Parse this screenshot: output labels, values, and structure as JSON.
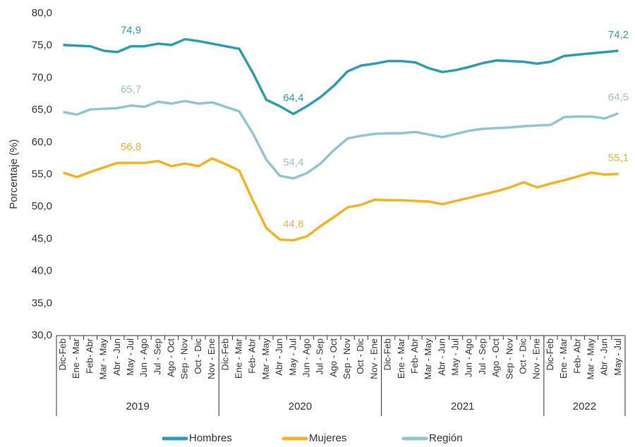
{
  "chart_data": {
    "type": "line",
    "y_label": "Porcentaje (%)",
    "category_groups": [
      {
        "label": "2019",
        "categories": [
          "Dic-Feb",
          "Ene - Mar",
          "Feb- Abr",
          "Mar - May",
          "Abr - Jun",
          "May - Jul",
          "Jun - Ago",
          "Jul - Sep",
          "Ago - Oct",
          "Sep - Nov",
          "Oct - Dic",
          "Nov - Ene"
        ]
      },
      {
        "label": "2020",
        "categories": [
          "Dic-Feb",
          "Ene - Mar",
          "Feb- Abr",
          "Mar - May",
          "Abr - Jun",
          "May - Jul",
          "Jun - Ago",
          "Jul - Sep",
          "Ago - Oct",
          "Sep - Nov",
          "Oct - Dic",
          "Nov - Ene"
        ]
      },
      {
        "label": "2021",
        "categories": [
          "Dic-Feb",
          "Ene - Mar",
          "Feb- Abr",
          "Mar - May",
          "Abr - Jun",
          "May - Jul",
          "Jun - Ago",
          "Jul - Sep",
          "Ago - Oct",
          "Sep - Nov",
          "Oct - Dic",
          "Nov - Ene"
        ]
      },
      {
        "label": "2022",
        "categories": [
          "Dic-Feb",
          "Ene - Mar",
          "Feb- Abr",
          "Mar - May",
          "Abr - Jun",
          "May - Jul"
        ]
      }
    ],
    "series": [
      {
        "name": "Hombres",
        "color": "#2e9cb4",
        "values": [
          75.1,
          75.0,
          74.9,
          74.2,
          74.0,
          74.9,
          74.9,
          75.3,
          75.1,
          76.0,
          75.7,
          75.3,
          74.9,
          74.5,
          70.8,
          66.6,
          65.6,
          64.4,
          65.6,
          67.0,
          68.8,
          71.0,
          71.9,
          72.2,
          72.6,
          72.6,
          72.4,
          71.5,
          70.9,
          71.2,
          71.7,
          72.3,
          72.7,
          72.6,
          72.5,
          72.2,
          72.5,
          73.4,
          73.6,
          73.8,
          74.0,
          74.2
        ],
        "value_labels": [
          null,
          null,
          null,
          null,
          null,
          "74,9",
          null,
          null,
          null,
          null,
          null,
          null,
          null,
          null,
          null,
          null,
          null,
          "64,4",
          null,
          null,
          null,
          null,
          null,
          null,
          null,
          null,
          null,
          null,
          null,
          null,
          null,
          null,
          null,
          null,
          null,
          null,
          null,
          null,
          null,
          null,
          null,
          "74,2"
        ]
      },
      {
        "name": "Mujeres",
        "color": "#f5b324",
        "values": [
          55.3,
          54.6,
          55.4,
          56.1,
          56.8,
          56.8,
          56.8,
          57.1,
          56.3,
          56.7,
          56.3,
          57.5,
          56.6,
          55.6,
          51.0,
          46.7,
          44.9,
          44.8,
          45.4,
          47.0,
          48.4,
          49.9,
          50.3,
          51.1,
          51.0,
          51.0,
          50.9,
          50.8,
          50.4,
          50.9,
          51.4,
          51.9,
          52.4,
          53.0,
          53.8,
          53.0,
          53.6,
          54.1,
          54.7,
          55.3,
          55.0,
          55.1
        ],
        "value_labels": [
          null,
          null,
          null,
          null,
          null,
          "56,8",
          null,
          null,
          null,
          null,
          null,
          null,
          null,
          null,
          null,
          null,
          null,
          "44,8",
          null,
          null,
          null,
          null,
          null,
          null,
          null,
          null,
          null,
          null,
          null,
          null,
          null,
          null,
          null,
          null,
          null,
          null,
          null,
          null,
          null,
          null,
          null,
          "55,1"
        ]
      },
      {
        "name": "Región",
        "color": "#92c5d3",
        "values": [
          64.7,
          64.3,
          65.1,
          65.2,
          65.3,
          65.7,
          65.5,
          66.3,
          66.0,
          66.4,
          66.0,
          66.2,
          65.5,
          64.8,
          61.4,
          57.3,
          54.8,
          54.4,
          55.2,
          56.7,
          58.8,
          60.6,
          61.0,
          61.3,
          61.4,
          61.4,
          61.6,
          61.2,
          60.8,
          61.3,
          61.8,
          62.1,
          62.2,
          62.3,
          62.5,
          62.6,
          62.7,
          63.9,
          64.0,
          64.0,
          63.7,
          64.5
        ],
        "value_labels": [
          null,
          null,
          null,
          null,
          null,
          "65,7",
          null,
          null,
          null,
          null,
          null,
          null,
          null,
          null,
          null,
          null,
          null,
          "54,4",
          null,
          null,
          null,
          null,
          null,
          null,
          null,
          null,
          null,
          null,
          null,
          null,
          null,
          null,
          null,
          null,
          null,
          null,
          null,
          null,
          null,
          null,
          null,
          "64,5"
        ]
      }
    ],
    "ylim": [
      30,
      80
    ],
    "yticks": [
      {
        "value": 30,
        "label": "30,0"
      },
      {
        "value": 35,
        "label": "35,0"
      },
      {
        "value": 40,
        "label": "40,0"
      },
      {
        "value": 45,
        "label": "45,0"
      },
      {
        "value": 50,
        "label": "50,0"
      },
      {
        "value": 55,
        "label": "55,0"
      },
      {
        "value": 60,
        "label": "60,0"
      },
      {
        "value": 65,
        "label": "65,0"
      },
      {
        "value": 70,
        "label": "70,0"
      },
      {
        "value": 75,
        "label": "75,0"
      },
      {
        "value": 80,
        "label": "80,0"
      }
    ],
    "legend": "bottom"
  }
}
